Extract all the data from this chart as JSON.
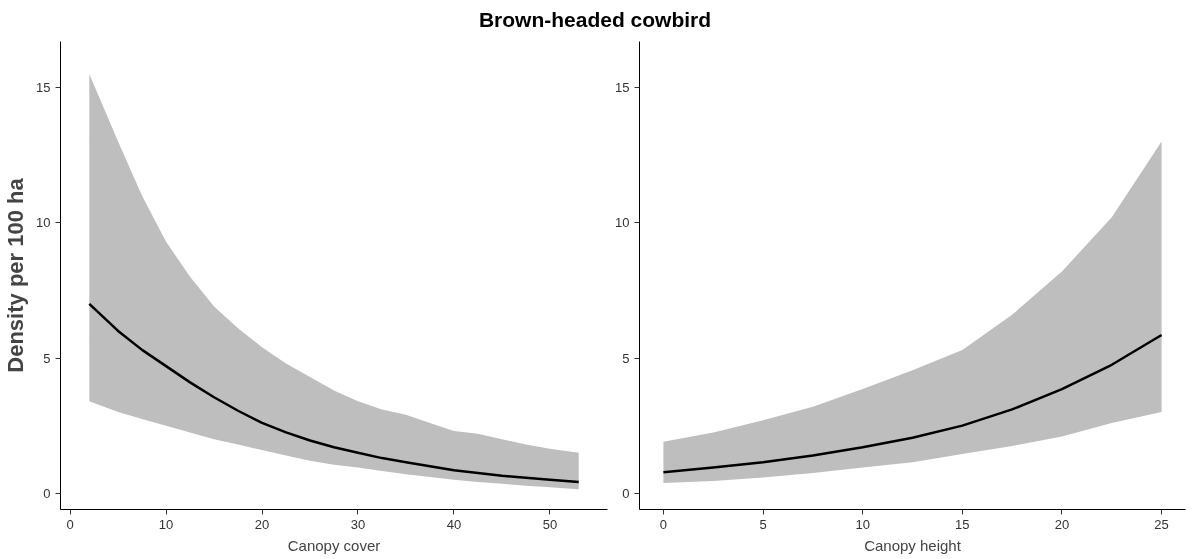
{
  "chart_data": [
    {
      "type": "line",
      "title": "Brown-headed cowbird",
      "xlabel": "Canopy cover",
      "ylabel": "Density per 100 ha",
      "xlim": [
        -1,
        56
      ],
      "ylim": [
        -0.6,
        16.7
      ],
      "xticks": [
        0,
        10,
        20,
        30,
        40,
        50
      ],
      "yticks": [
        0,
        5,
        10,
        15
      ],
      "grid": false,
      "series": [
        {
          "color": "#000000",
          "x": [
            2,
            5,
            7.5,
            10,
            12.5,
            15,
            17.5,
            20,
            22.5,
            25,
            27.5,
            30,
            32.5,
            35,
            37.5,
            40,
            42.5,
            45,
            47.5,
            50,
            53
          ],
          "values": [
            7.0,
            6.0,
            5.3,
            4.7,
            4.1,
            3.55,
            3.05,
            2.6,
            2.25,
            1.95,
            1.7,
            1.5,
            1.3,
            1.15,
            1.0,
            0.85,
            0.75,
            0.65,
            0.57,
            0.5,
            0.42
          ],
          "upper": [
            15.5,
            13.0,
            11.0,
            9.3,
            8.0,
            6.9,
            6.1,
            5.4,
            4.8,
            4.3,
            3.8,
            3.4,
            3.1,
            2.9,
            2.6,
            2.3,
            2.2,
            2.0,
            1.8,
            1.65,
            1.5
          ],
          "lower": [
            3.4,
            3.0,
            2.75,
            2.5,
            2.25,
            2.0,
            1.8,
            1.6,
            1.4,
            1.2,
            1.05,
            0.95,
            0.82,
            0.7,
            0.6,
            0.5,
            0.42,
            0.35,
            0.28,
            0.22,
            0.15
          ]
        }
      ]
    },
    {
      "type": "line",
      "xlabel": "Canopy height",
      "xlim": [
        -1.2,
        26.2
      ],
      "ylim": [
        -0.6,
        16.7
      ],
      "xticks": [
        0,
        5,
        10,
        15,
        20,
        25
      ],
      "yticks": [
        0,
        5,
        10,
        15
      ],
      "grid": false,
      "series": [
        {
          "color": "#000000",
          "x": [
            0,
            2.5,
            5,
            7.5,
            10,
            12.5,
            15,
            17.5,
            20,
            22.5,
            25
          ],
          "values": [
            0.78,
            0.95,
            1.15,
            1.4,
            1.7,
            2.05,
            2.5,
            3.1,
            3.85,
            4.75,
            5.85
          ],
          "upper": [
            1.9,
            2.25,
            2.7,
            3.2,
            3.85,
            4.55,
            5.3,
            6.6,
            8.2,
            10.2,
            13.0
          ],
          "lower": [
            0.38,
            0.45,
            0.58,
            0.75,
            0.95,
            1.15,
            1.45,
            1.75,
            2.1,
            2.6,
            3.0
          ]
        }
      ]
    }
  ]
}
